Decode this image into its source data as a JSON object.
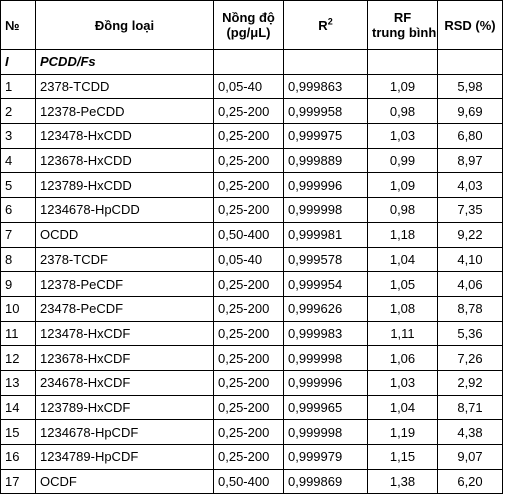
{
  "table": {
    "headers": {
      "no": "№",
      "congener": "Đồng loại",
      "concentration_line1": "Nồng độ",
      "concentration_line2": "(pg/μL)",
      "r2_base": "R",
      "r2_sup": "2",
      "rf_line1": "RF",
      "rf_line2": "trung bình",
      "rsd": "RSD (%)"
    },
    "group": {
      "no": "I",
      "name": "PCDD/Fs"
    },
    "rows": [
      {
        "no": "1",
        "congener": "2378-TCDD",
        "conc": "0,05-40",
        "r2": "0,999863",
        "rf": "1,09",
        "rsd": "5,98"
      },
      {
        "no": "2",
        "congener": "12378-PeCDD",
        "conc": "0,25-200",
        "r2": "0,999958",
        "rf": "0,98",
        "rsd": "9,69"
      },
      {
        "no": "3",
        "congener": "123478-HxCDD",
        "conc": "0,25-200",
        "r2": "0,999975",
        "rf": "1,03",
        "rsd": "6,80"
      },
      {
        "no": "4",
        "congener": "123678-HxCDD",
        "conc": "0,25-200",
        "r2": "0,999889",
        "rf": "0,99",
        "rsd": "8,97"
      },
      {
        "no": "5",
        "congener": "123789-HxCDD",
        "conc": "0,25-200",
        "r2": "0,999996",
        "rf": "1,09",
        "rsd": "4,03"
      },
      {
        "no": "6",
        "congener": "1234678-HpCDD",
        "conc": "0,25-200",
        "r2": "0,999998",
        "rf": "0,98",
        "rsd": "7,35"
      },
      {
        "no": "7",
        "congener": "OCDD",
        "conc": "0,50-400",
        "r2": "0,999981",
        "rf": "1,18",
        "rsd": "9,22"
      },
      {
        "no": "8",
        "congener": "2378-TCDF",
        "conc": "0,05-40",
        "r2": "0,999578",
        "rf": "1,04",
        "rsd": "4,10"
      },
      {
        "no": "9",
        "congener": "12378-PeCDF",
        "conc": "0,25-200",
        "r2": "0,999954",
        "rf": "1,05",
        "rsd": "4,06"
      },
      {
        "no": "10",
        "congener": "23478-PeCDF",
        "conc": "0,25-200",
        "r2": "0,999626",
        "rf": "1,08",
        "rsd": "8,78"
      },
      {
        "no": "11",
        "congener": "123478-HxCDF",
        "conc": "0,25-200",
        "r2": "0,999983",
        "rf": "1,11",
        "rsd": "5,36"
      },
      {
        "no": "12",
        "congener": "123678-HxCDF",
        "conc": "0,25-200",
        "r2": "0,999998",
        "rf": "1,06",
        "rsd": "7,26"
      },
      {
        "no": "13",
        "congener": "234678-HxCDF",
        "conc": "0,25-200",
        "r2": "0,999996",
        "rf": "1,03",
        "rsd": "2,92"
      },
      {
        "no": "14",
        "congener": "123789-HxCDF",
        "conc": "0,25-200",
        "r2": "0,999965",
        "rf": "1,04",
        "rsd": "8,71"
      },
      {
        "no": "15",
        "congener": "1234678-HpCDF",
        "conc": "0,25-200",
        "r2": "0,999998",
        "rf": "1,19",
        "rsd": "4,38"
      },
      {
        "no": "16",
        "congener": "1234789-HpCDF",
        "conc": "0,25-200",
        "r2": "0,999979",
        "rf": "1,15",
        "rsd": "9,07"
      },
      {
        "no": "17",
        "congener": "OCDF",
        "conc": "0,50-400",
        "r2": "0,999869",
        "rf": "1,38",
        "rsd": "6,20"
      }
    ]
  }
}
